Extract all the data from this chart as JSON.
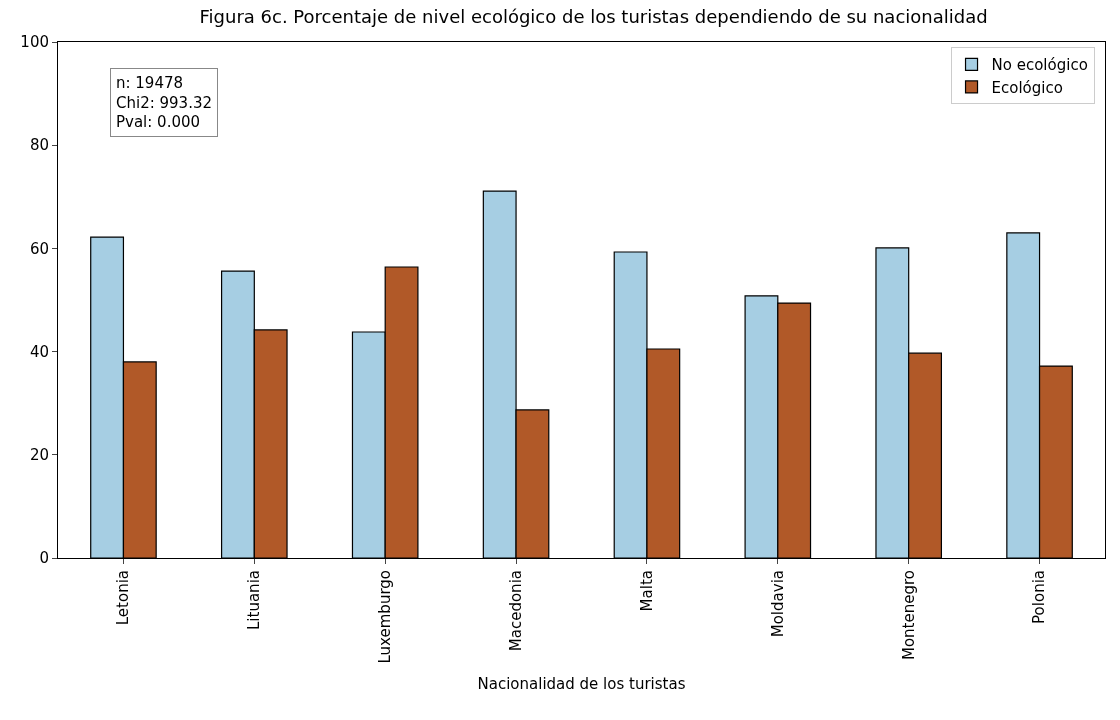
{
  "chart_data": {
    "type": "bar",
    "title": "Figura 6c. Porcentaje de nivel ecológico de los turistas dependiendo de su nacionalidad",
    "xlabel": "Nacionalidad de los turistas",
    "categories": [
      "Letonia",
      "Lituania",
      "Luxemburgo",
      "Macedonia",
      "Malta",
      "Moldavia",
      "Montenegro",
      "Polonia"
    ],
    "series": [
      {
        "name": "No ecológico",
        "color": "#a6cee3",
        "values": [
          62.2,
          55.6,
          43.8,
          71.1,
          59.3,
          50.8,
          60.1,
          63.0
        ]
      },
      {
        "name": "Ecológico",
        "color": "#b15928",
        "values": [
          38.0,
          44.2,
          56.4,
          28.7,
          40.5,
          49.4,
          39.7,
          37.2
        ]
      }
    ],
    "ylim": [
      0,
      100
    ],
    "yticks": [
      0,
      20,
      40,
      60,
      80,
      100
    ],
    "legend": "top right",
    "annotations": [
      "n: 19478\nChi2: 993.32\nPval: 0.000"
    ]
  }
}
